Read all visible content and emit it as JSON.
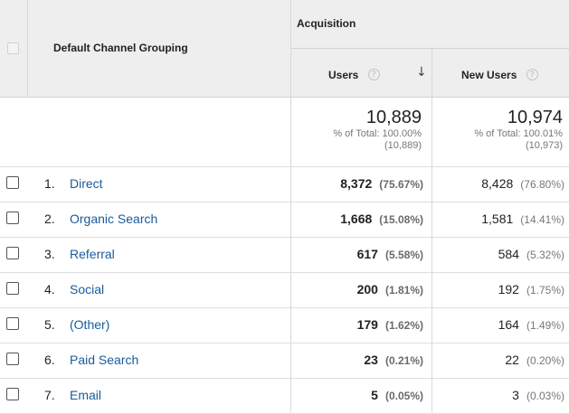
{
  "header": {
    "dimension_label": "Default Channel Grouping",
    "group_label": "Acquisition",
    "columns": [
      {
        "label": "Users",
        "help": "?",
        "sort": "↓"
      },
      {
        "label": "New Users",
        "help": "?"
      }
    ]
  },
  "totals": {
    "users": {
      "value": "10,889",
      "pct_label": "% of Total: 100.00%",
      "base": "(10,889)"
    },
    "new_users": {
      "value": "10,974",
      "pct_label": "% of Total: 100.01%",
      "base": "(10,973)"
    }
  },
  "rows": [
    {
      "num": "1.",
      "channel": "Direct",
      "users": "8,372",
      "users_pct": "(75.67%)",
      "new_users": "8,428",
      "new_users_pct": "(76.80%)"
    },
    {
      "num": "2.",
      "channel": "Organic Search",
      "users": "1,668",
      "users_pct": "(15.08%)",
      "new_users": "1,581",
      "new_users_pct": "(14.41%)"
    },
    {
      "num": "3.",
      "channel": "Referral",
      "users": "617",
      "users_pct": "(5.58%)",
      "new_users": "584",
      "new_users_pct": "(5.32%)"
    },
    {
      "num": "4.",
      "channel": "Social",
      "users": "200",
      "users_pct": "(1.81%)",
      "new_users": "192",
      "new_users_pct": "(1.75%)"
    },
    {
      "num": "5.",
      "channel": "(Other)",
      "users": "179",
      "users_pct": "(1.62%)",
      "new_users": "164",
      "new_users_pct": "(1.49%)"
    },
    {
      "num": "6.",
      "channel": "Paid Search",
      "users": "23",
      "users_pct": "(0.21%)",
      "new_users": "22",
      "new_users_pct": "(0.20%)"
    },
    {
      "num": "7.",
      "channel": "Email",
      "users": "5",
      "users_pct": "(0.05%)",
      "new_users": "3",
      "new_users_pct": "(0.03%)"
    }
  ]
}
